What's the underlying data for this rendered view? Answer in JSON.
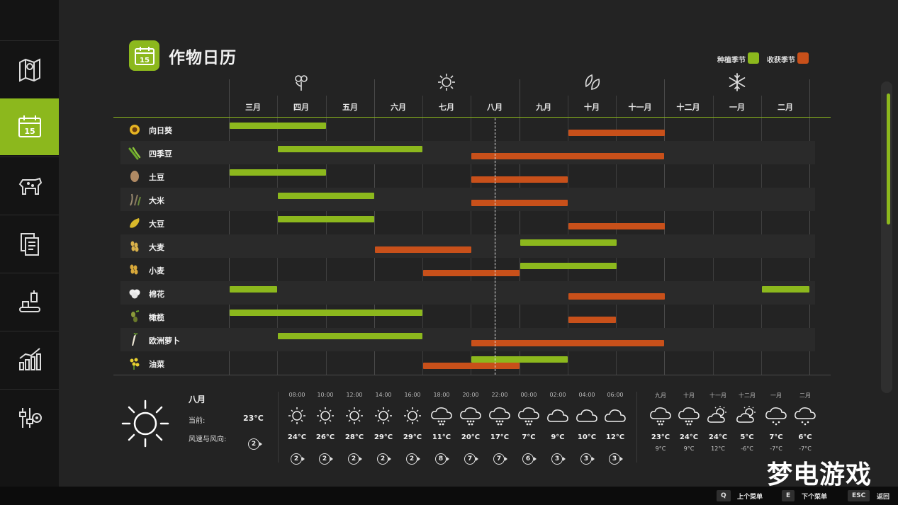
{
  "title": "作物日历",
  "legend": {
    "plant_label": "种植季节",
    "harvest_label": "收获季节",
    "plant_color": "#8cb81d",
    "harvest_color": "#c8501a"
  },
  "sidebar": {
    "items": [
      {
        "name": "map-icon"
      },
      {
        "name": "calendar-icon",
        "text": "15",
        "active": true
      },
      {
        "name": "animals-icon"
      },
      {
        "name": "contracts-icon"
      },
      {
        "name": "production-icon"
      },
      {
        "name": "statistics-icon"
      },
      {
        "name": "settings-icon"
      }
    ]
  },
  "title_icon_text": "15",
  "seasons": [
    "spring-flower-icon",
    "summer-sun-icon",
    "autumn-leaves-icon",
    "winter-snowflake-icon"
  ],
  "months": [
    "三月",
    "四月",
    "五月",
    "六月",
    "七月",
    "八月",
    "九月",
    "十月",
    "十一月",
    "十二月",
    "一月",
    "二月"
  ],
  "current_month_index": 5,
  "crops": [
    {
      "name": "向日葵",
      "icon": "sunflower-icon",
      "plant": [
        [
          0,
          2
        ]
      ],
      "harvest": [
        [
          7,
          9
        ]
      ]
    },
    {
      "name": "四季豆",
      "icon": "green-bean-icon",
      "plant": [
        [
          1,
          4
        ]
      ],
      "harvest": [
        [
          5,
          9
        ]
      ]
    },
    {
      "name": "土豆",
      "icon": "potato-icon",
      "plant": [
        [
          0,
          2
        ]
      ],
      "harvest": [
        [
          5,
          7
        ]
      ]
    },
    {
      "name": "大米",
      "icon": "rice-icon",
      "plant": [
        [
          1,
          3
        ]
      ],
      "harvest": [
        [
          5,
          7
        ]
      ]
    },
    {
      "name": "大豆",
      "icon": "soybean-icon",
      "plant": [
        [
          1,
          3
        ]
      ],
      "harvest": [
        [
          7,
          9
        ]
      ]
    },
    {
      "name": "大麦",
      "icon": "barley-icon",
      "plant": [
        [
          6,
          8
        ]
      ],
      "harvest": [
        [
          3,
          5
        ]
      ]
    },
    {
      "name": "小麦",
      "icon": "wheat-icon",
      "plant": [
        [
          6,
          8
        ]
      ],
      "harvest": [
        [
          4,
          6
        ]
      ]
    },
    {
      "name": "棉花",
      "icon": "cotton-icon",
      "plant": [
        [
          0,
          1
        ],
        [
          11,
          12
        ]
      ],
      "harvest": [
        [
          7,
          9
        ]
      ]
    },
    {
      "name": "橄榄",
      "icon": "olive-icon",
      "plant": [
        [
          0,
          4
        ]
      ],
      "harvest": [
        [
          7,
          8
        ]
      ]
    },
    {
      "name": "欧洲萝卜",
      "icon": "parsnip-icon",
      "plant": [
        [
          1,
          4
        ]
      ],
      "harvest": [
        [
          5,
          9
        ]
      ]
    },
    {
      "name": "油菜",
      "icon": "canola-icon",
      "plant": [
        [
          5,
          7
        ]
      ],
      "harvest": [
        [
          4,
          6
        ]
      ]
    }
  ],
  "weather": {
    "month": "八月",
    "current_label": "当前:",
    "current_temp": "23°C",
    "wind_label": "风速与风向:",
    "wind_value": "2",
    "hourly": [
      {
        "time": "08:00",
        "icon": "sun-icon",
        "temp": "24°C",
        "wind": "2"
      },
      {
        "time": "10:00",
        "icon": "sun-icon",
        "temp": "26°C",
        "wind": "2"
      },
      {
        "time": "12:00",
        "icon": "sun-icon",
        "temp": "28°C",
        "wind": "2"
      },
      {
        "time": "14:00",
        "icon": "sun-icon",
        "temp": "29°C",
        "wind": "2"
      },
      {
        "time": "16:00",
        "icon": "sun-icon",
        "temp": "29°C",
        "wind": "2"
      },
      {
        "time": "18:00",
        "icon": "hail-icon",
        "temp": "11°C",
        "wind": "8"
      },
      {
        "time": "20:00",
        "icon": "hail-icon",
        "temp": "20°C",
        "wind": "7"
      },
      {
        "time": "22:00",
        "icon": "hail-icon",
        "temp": "17°C",
        "wind": "7"
      },
      {
        "time": "00:00",
        "icon": "hail-icon",
        "temp": "7°C",
        "wind": "6"
      },
      {
        "time": "02:00",
        "icon": "cloud-icon",
        "temp": "9°C",
        "wind": "3"
      },
      {
        "time": "04:00",
        "icon": "cloud-icon",
        "temp": "10°C",
        "wind": "3"
      },
      {
        "time": "06:00",
        "icon": "cloud-icon",
        "temp": "12°C",
        "wind": "3"
      }
    ],
    "monthly": [
      {
        "month": "九月",
        "icon": "hail-icon",
        "high": "23°C",
        "low": "9°C"
      },
      {
        "month": "十月",
        "icon": "hail-icon",
        "high": "24°C",
        "low": "9°C"
      },
      {
        "month": "十一月",
        "icon": "partly-sunny-icon",
        "high": "24°C",
        "low": "12°C"
      },
      {
        "month": "十二月",
        "icon": "partly-sunny-icon",
        "high": "5°C",
        "low": "-6°C"
      },
      {
        "month": "一月",
        "icon": "snow-icon",
        "high": "7°C",
        "low": "-7°C"
      },
      {
        "month": "二月",
        "icon": "snow-icon",
        "high": "6°C",
        "low": "-7°C"
      }
    ]
  },
  "footer": {
    "keys": [
      {
        "key": "Q",
        "label": "上个菜单"
      },
      {
        "key": "E",
        "label": "下个菜单"
      },
      {
        "key": "ESC",
        "label": "返回"
      }
    ]
  },
  "watermark": "梦电游戏"
}
